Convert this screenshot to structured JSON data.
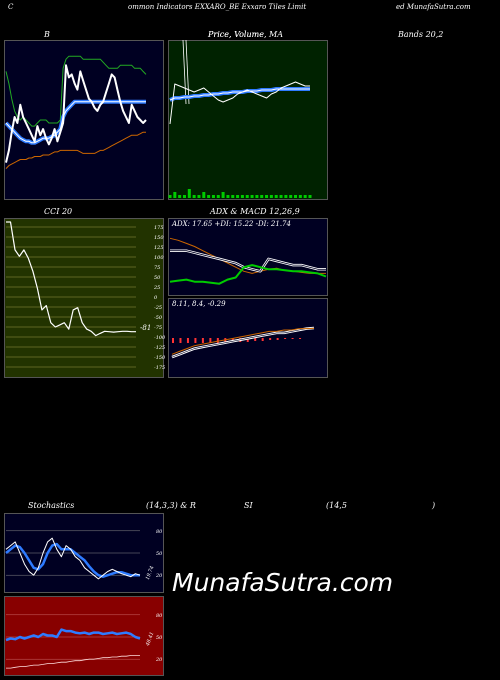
{
  "header": {
    "left": "C",
    "mid": "ommon  Indicators EXXARO_BE Exxaro  Tiles Limit",
    "right": "ed MunafaSutra.com"
  },
  "panels": {
    "bollinger": {
      "title": "B",
      "right_label": "Bands 20,2"
    },
    "price": {
      "title": "Price,  Volume, MA",
      "title2": "Price, Volume"
    },
    "cci": {
      "title": "CCI 20",
      "last_value": "-81",
      "ticks": [
        "175",
        "150",
        "125",
        "100",
        "75",
        "50",
        "25",
        "0",
        "-25",
        "-50",
        "-75",
        "-100",
        "-125",
        "-150",
        "-175"
      ]
    },
    "adx": {
      "title": "ADX  & MACD 12,26,9",
      "readout": "ADX: 17.65  +DI: 15.22  -DI: 21.74"
    },
    "macd": {
      "readout": "8.11,  8.4,  -0.29"
    },
    "stoch": {
      "title": "Stochastics",
      "params": "(14,3,3) & R",
      "ticks": [
        "80",
        "50",
        "20"
      ],
      "last_value": "19.74"
    },
    "rsi": {
      "title_a": "SI",
      "params": "(14,5",
      "close": ")",
      "ticks": [
        "80",
        "50",
        "20"
      ],
      "last_value": "48.41"
    }
  },
  "watermark": "MunafaSutra.com",
  "colors": {
    "green_panel": "#002200",
    "navy_panel": "#000022",
    "olive_panel": "#223300",
    "red_panel": "#880000",
    "blue_line": "#2e7bff",
    "orange_line": "#cc6600"
  },
  "chart_data": [
    {
      "type": "line",
      "name": "bollinger",
      "x": [
        1,
        2,
        3,
        4,
        5,
        6,
        7,
        8,
        9,
        10,
        11,
        12,
        13,
        14,
        15,
        16,
        17,
        18,
        19,
        20,
        21,
        22,
        23,
        24,
        25,
        26,
        27,
        28,
        29,
        30,
        31,
        32,
        33,
        34,
        35,
        36,
        37,
        38,
        39,
        40,
        41,
        42,
        43,
        44,
        45,
        46,
        47,
        48,
        49,
        50
      ],
      "price": [
        22,
        30,
        42,
        52,
        48,
        60,
        52,
        48,
        44,
        40,
        36,
        46,
        40,
        44,
        38,
        34,
        38,
        44,
        36,
        42,
        48,
        86,
        78,
        80,
        74,
        70,
        82,
        76,
        70,
        64,
        62,
        58,
        56,
        60,
        62,
        68,
        74,
        80,
        78,
        70,
        62,
        56,
        52,
        48,
        60,
        56,
        52,
        50,
        48,
        50
      ],
      "upper": [
        82,
        74,
        64,
        56,
        52,
        50,
        52,
        50,
        48,
        46,
        46,
        48,
        50,
        50,
        50,
        48,
        48,
        48,
        48,
        50,
        84,
        90,
        92,
        92,
        92,
        92,
        92,
        90,
        90,
        90,
        90,
        90,
        90,
        90,
        88,
        86,
        84,
        84,
        84,
        84,
        86,
        86,
        86,
        86,
        86,
        84,
        84,
        84,
        82,
        80
      ],
      "middle": [
        48,
        46,
        44,
        42,
        40,
        38,
        37,
        36,
        36,
        35,
        35,
        36,
        37,
        38,
        38,
        38,
        39,
        40,
        42,
        44,
        52,
        56,
        58,
        60,
        62,
        62,
        62,
        62,
        62,
        62,
        62,
        62,
        62,
        62,
        62,
        62,
        62,
        62,
        62,
        62,
        62,
        62,
        62,
        62,
        62,
        62,
        62,
        62,
        62,
        62
      ],
      "lower": [
        18,
        20,
        21,
        22,
        23,
        24,
        24,
        24,
        25,
        25,
        26,
        26,
        26,
        27,
        27,
        27,
        28,
        29,
        29,
        30,
        30,
        30,
        30,
        30,
        30,
        30,
        29,
        28,
        28,
        28,
        28,
        28,
        29,
        30,
        30,
        31,
        32,
        33,
        34,
        35,
        36,
        37,
        38,
        39,
        40,
        40,
        40,
        41,
        42,
        42
      ]
    },
    {
      "type": "line",
      "name": "price",
      "x": [
        1,
        2,
        3,
        4,
        5,
        6,
        7,
        8,
        9,
        10,
        11,
        12,
        13,
        14,
        15,
        16,
        17,
        18,
        19,
        20,
        21,
        22,
        23,
        24,
        25,
        26,
        27,
        28,
        29,
        30
      ],
      "price": [
        20,
        60,
        58,
        56,
        54,
        52,
        54,
        56,
        52,
        48,
        44,
        42,
        44,
        46,
        50,
        52,
        54,
        52,
        50,
        48,
        46,
        50,
        52,
        56,
        58,
        60,
        62,
        60,
        58,
        58
      ],
      "ma": [
        44,
        46,
        46,
        47,
        47,
        48,
        48,
        49,
        49,
        50,
        50,
        51,
        51,
        52,
        52,
        52,
        53,
        53,
        53,
        54,
        54,
        54,
        55,
        55,
        55,
        55,
        55,
        55,
        55,
        55
      ],
      "volume": [
        1,
        2,
        1,
        1,
        3,
        1,
        1,
        2,
        1,
        1,
        1,
        2,
        1,
        1,
        1,
        1,
        1,
        1,
        1,
        1,
        1,
        1,
        1,
        1,
        1,
        1,
        1,
        1,
        1,
        1
      ]
    },
    {
      "type": "line",
      "name": "cci",
      "x": [
        1,
        2,
        3,
        4,
        5,
        6,
        7,
        8,
        9,
        10,
        11,
        12,
        13,
        14,
        15,
        16,
        17,
        18,
        19,
        20,
        21,
        22,
        23,
        24,
        25,
        26,
        27,
        28,
        29,
        30
      ],
      "values": [
        175,
        175,
        110,
        95,
        110,
        90,
        60,
        20,
        -30,
        -20,
        -60,
        -70,
        -65,
        -60,
        -75,
        -30,
        -25,
        -60,
        -75,
        -80,
        -90,
        -85,
        -80,
        -81,
        -82,
        -81,
        -80,
        -80,
        -81,
        -81
      ],
      "ylim": [
        -175,
        175
      ]
    },
    {
      "type": "line",
      "name": "adx",
      "x": [
        1,
        2,
        3,
        4,
        5,
        6,
        7,
        8,
        9,
        10,
        11,
        12,
        13,
        14,
        15,
        16,
        17,
        18,
        19,
        20
      ],
      "adx": [
        52,
        50,
        47,
        44,
        40,
        36,
        32,
        28,
        24,
        20,
        18,
        20,
        22,
        23,
        21,
        20,
        19,
        18,
        18,
        18
      ],
      "plus_di": [
        10,
        11,
        12,
        10,
        10,
        9,
        8,
        12,
        14,
        24,
        26,
        24,
        22,
        22,
        21,
        20,
        20,
        19,
        18,
        15
      ],
      "minus_di": [
        40,
        40,
        40,
        38,
        36,
        34,
        32,
        30,
        28,
        24,
        22,
        20,
        32,
        30,
        28,
        26,
        26,
        24,
        22,
        22
      ]
    },
    {
      "type": "line",
      "name": "macd",
      "x": [
        1,
        2,
        3,
        4,
        5,
        6,
        7,
        8,
        9,
        10,
        11,
        12,
        13,
        14,
        15,
        16,
        17,
        18,
        19,
        20
      ],
      "macd": [
        -10,
        -8,
        -6,
        -4,
        -3,
        -2,
        -1,
        0,
        1,
        2,
        3,
        4,
        5,
        6,
        6,
        7,
        7,
        8,
        8,
        8.11
      ],
      "signal": [
        -12,
        -10,
        -8,
        -6,
        -5,
        -4,
        -3,
        -2,
        -1,
        0,
        1,
        2,
        3,
        4,
        5,
        5,
        6,
        7,
        8,
        8.4
      ],
      "histogram": [
        5,
        5,
        5,
        5,
        5,
        5,
        5,
        5,
        4,
        4,
        4,
        3,
        3,
        2,
        2,
        1,
        1,
        1,
        0,
        0
      ]
    },
    {
      "type": "line",
      "name": "stochastics",
      "x": [
        1,
        2,
        3,
        4,
        5,
        6,
        7,
        8,
        9,
        10,
        11,
        12,
        13,
        14,
        15,
        16,
        17,
        18,
        19,
        20,
        21,
        22,
        23,
        24,
        25,
        26,
        27,
        28,
        29,
        30
      ],
      "k": [
        55,
        60,
        65,
        50,
        35,
        25,
        20,
        30,
        50,
        65,
        70,
        55,
        45,
        60,
        55,
        45,
        40,
        30,
        25,
        20,
        15,
        20,
        25,
        28,
        25,
        22,
        20,
        18,
        22,
        20
      ],
      "d": [
        50,
        55,
        60,
        58,
        50,
        40,
        30,
        28,
        35,
        50,
        60,
        62,
        55,
        55,
        55,
        50,
        45,
        40,
        32,
        25,
        20,
        18,
        20,
        22,
        24,
        24,
        22,
        20,
        20,
        20
      ],
      "ylim": [
        0,
        100
      ]
    },
    {
      "type": "line",
      "name": "rsi",
      "x": [
        1,
        2,
        3,
        4,
        5,
        6,
        7,
        8,
        9,
        10,
        11,
        12,
        13,
        14,
        15,
        16,
        17,
        18,
        19,
        20,
        21,
        22,
        23,
        24,
        25,
        26,
        27,
        28,
        29,
        30
      ],
      "rsi": [
        46,
        48,
        47,
        50,
        48,
        50,
        52,
        50,
        54,
        52,
        52,
        50,
        60,
        58,
        58,
        56,
        55,
        56,
        54,
        56,
        56,
        54,
        55,
        56,
        54,
        55,
        56,
        54,
        50,
        48
      ],
      "price_overlay": [
        8,
        8,
        9,
        10,
        10,
        11,
        12,
        12,
        13,
        14,
        14,
        15,
        16,
        16,
        17,
        18,
        18,
        19,
        20,
        20,
        21,
        22,
        22,
        23,
        23,
        24,
        24,
        25,
        25,
        25
      ],
      "ylim": [
        0,
        100
      ]
    }
  ]
}
